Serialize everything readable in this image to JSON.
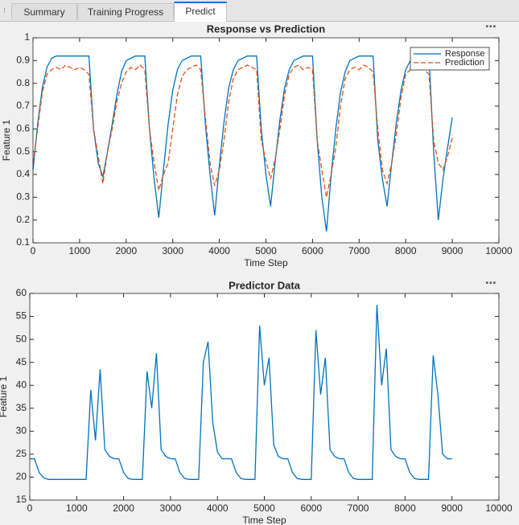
{
  "tabs": [
    "Summary",
    "Training Progress",
    "Predict"
  ],
  "active_tab": 2,
  "chart_data": [
    {
      "type": "line",
      "title": "Response vs Prediction",
      "xlabel": "Time Step",
      "ylabel": "Feature 1",
      "x": [
        0,
        100,
        200,
        300,
        400,
        500,
        600,
        700,
        800,
        900,
        1000,
        1100,
        1200,
        1300,
        1400,
        1500,
        1600,
        1700,
        1800,
        1900,
        2000,
        2100,
        2200,
        2300,
        2400,
        2500,
        2600,
        2700,
        2800,
        2900,
        3000,
        3100,
        3200,
        3300,
        3400,
        3500,
        3600,
        3700,
        3800,
        3900,
        4000,
        4100,
        4200,
        4300,
        4400,
        4500,
        4600,
        4700,
        4800,
        4900,
        5000,
        5100,
        5200,
        5300,
        5400,
        5500,
        5600,
        5700,
        5800,
        5900,
        6000,
        6100,
        6200,
        6300,
        6400,
        6500,
        6600,
        6700,
        6800,
        6900,
        7000,
        7100,
        7200,
        7300,
        7400,
        7500,
        7600,
        7700,
        7800,
        7900,
        8000,
        8100,
        8200,
        8300,
        8400,
        8500,
        8600,
        8700,
        8800,
        8900,
        9000
      ],
      "series": [
        {
          "name": "Response",
          "color": "#0072bd",
          "dash": "solid",
          "values": [
            0.42,
            0.62,
            0.78,
            0.87,
            0.91,
            0.92,
            0.92,
            0.92,
            0.92,
            0.92,
            0.92,
            0.92,
            0.92,
            0.6,
            0.45,
            0.39,
            0.5,
            0.62,
            0.75,
            0.85,
            0.9,
            0.91,
            0.92,
            0.92,
            0.92,
            0.6,
            0.38,
            0.21,
            0.42,
            0.62,
            0.77,
            0.86,
            0.9,
            0.91,
            0.92,
            0.92,
            0.92,
            0.62,
            0.4,
            0.22,
            0.44,
            0.63,
            0.78,
            0.86,
            0.9,
            0.91,
            0.92,
            0.92,
            0.92,
            0.6,
            0.4,
            0.26,
            0.46,
            0.64,
            0.78,
            0.86,
            0.9,
            0.91,
            0.92,
            0.92,
            0.92,
            0.55,
            0.3,
            0.15,
            0.4,
            0.6,
            0.76,
            0.85,
            0.9,
            0.91,
            0.92,
            0.92,
            0.92,
            0.92,
            0.55,
            0.38,
            0.26,
            0.45,
            0.63,
            0.77,
            0.86,
            0.9,
            0.91,
            0.92,
            0.92,
            0.92,
            0.5,
            0.2,
            0.38,
            0.52,
            0.65
          ]
        },
        {
          "name": "Prediction",
          "color": "#d95319",
          "dash": "dashed",
          "values": [
            0.45,
            0.6,
            0.76,
            0.84,
            0.86,
            0.87,
            0.86,
            0.88,
            0.87,
            0.86,
            0.87,
            0.86,
            0.84,
            0.6,
            0.48,
            0.36,
            0.5,
            0.6,
            0.72,
            0.8,
            0.85,
            0.87,
            0.86,
            0.88,
            0.86,
            0.6,
            0.45,
            0.33,
            0.4,
            0.45,
            0.6,
            0.75,
            0.83,
            0.86,
            0.87,
            0.88,
            0.86,
            0.65,
            0.45,
            0.35,
            0.42,
            0.55,
            0.72,
            0.82,
            0.86,
            0.87,
            0.88,
            0.87,
            0.86,
            0.55,
            0.46,
            0.38,
            0.47,
            0.6,
            0.75,
            0.84,
            0.87,
            0.88,
            0.86,
            0.87,
            0.86,
            0.55,
            0.42,
            0.3,
            0.4,
            0.52,
            0.7,
            0.82,
            0.86,
            0.87,
            0.86,
            0.88,
            0.87,
            0.85,
            0.6,
            0.42,
            0.36,
            0.45,
            0.58,
            0.74,
            0.84,
            0.86,
            0.87,
            0.87,
            0.86,
            0.84,
            0.55,
            0.45,
            0.42,
            0.48,
            0.56
          ]
        }
      ],
      "xlim": [
        0,
        10000
      ],
      "xticks": [
        0,
        1000,
        2000,
        3000,
        4000,
        5000,
        6000,
        7000,
        8000,
        9000,
        10000
      ],
      "ylim": [
        0.1,
        1
      ],
      "yticks": [
        0.1,
        0.2,
        0.3,
        0.4,
        0.5,
        0.6,
        0.7,
        0.8,
        0.9,
        1
      ],
      "legend": "northeast"
    },
    {
      "type": "line",
      "title": "Predictor Data",
      "xlabel": "Time Step",
      "ylabel": "Feature 1",
      "x": [
        0,
        100,
        200,
        300,
        400,
        500,
        600,
        700,
        800,
        900,
        1000,
        1100,
        1200,
        1300,
        1400,
        1500,
        1600,
        1700,
        1800,
        1900,
        2000,
        2100,
        2200,
        2300,
        2400,
        2500,
        2600,
        2700,
        2800,
        2900,
        3000,
        3100,
        3200,
        3300,
        3400,
        3500,
        3600,
        3700,
        3800,
        3900,
        4000,
        4100,
        4200,
        4300,
        4400,
        4500,
        4600,
        4700,
        4800,
        4900,
        5000,
        5100,
        5200,
        5300,
        5400,
        5500,
        5600,
        5700,
        5800,
        5900,
        6000,
        6100,
        6200,
        6300,
        6400,
        6500,
        6600,
        6700,
        6800,
        6900,
        7000,
        7100,
        7200,
        7300,
        7400,
        7500,
        7600,
        7700,
        7800,
        7900,
        8000,
        8100,
        8200,
        8300,
        8400,
        8500,
        8600,
        8700,
        8800,
        8900,
        9000
      ],
      "series": [
        {
          "color": "#0072bd",
          "dash": "solid",
          "values": [
            24,
            24,
            21,
            19.8,
            19.5,
            19.5,
            19.5,
            19.5,
            19.5,
            19.5,
            19.5,
            19.5,
            19.5,
            39,
            28,
            43.5,
            26,
            24.5,
            24,
            24,
            21,
            19.7,
            19.5,
            19.5,
            19.5,
            43,
            35,
            47,
            26,
            24.5,
            24,
            24,
            21,
            19.7,
            19.5,
            19.5,
            19.5,
            45,
            49.5,
            32,
            25.5,
            24,
            24,
            24,
            21,
            19.7,
            19.5,
            19.5,
            19.5,
            53,
            40,
            46,
            27,
            24.5,
            24,
            24,
            21,
            19.7,
            19.5,
            19.5,
            19.5,
            52,
            38,
            46,
            26,
            24.5,
            24,
            24,
            21,
            19.7,
            19.5,
            19.5,
            19.5,
            19.5,
            57.5,
            40,
            48,
            26,
            24.5,
            24,
            24,
            21,
            19.7,
            19.5,
            19.5,
            19.5,
            46.5,
            38,
            25,
            24,
            24
          ]
        }
      ],
      "xlim": [
        0,
        10000
      ],
      "xticks": [
        0,
        1000,
        2000,
        3000,
        4000,
        5000,
        6000,
        7000,
        8000,
        9000,
        10000
      ],
      "ylim": [
        15,
        60
      ],
      "yticks": [
        15,
        20,
        25,
        30,
        35,
        40,
        45,
        50,
        55,
        60
      ]
    }
  ]
}
